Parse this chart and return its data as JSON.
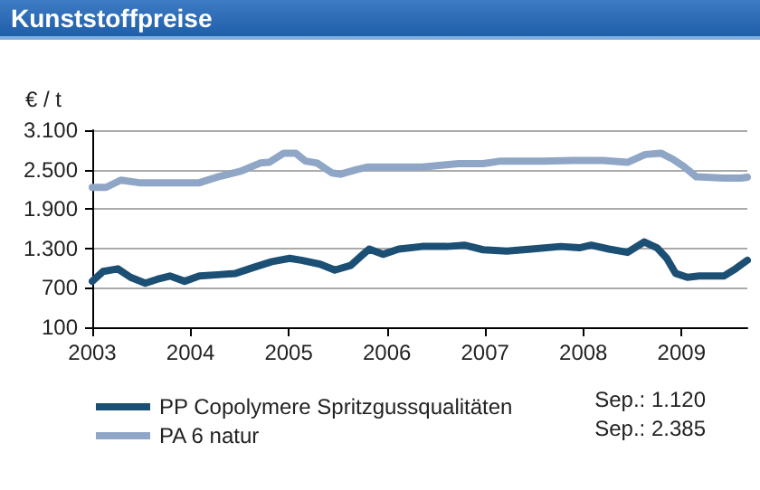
{
  "chart_data": {
    "type": "line",
    "title": "Kunststoffpreise",
    "ylabel": "€ / t",
    "xlim": [
      2003,
      2009.67
    ],
    "xticks": [
      2003,
      2004,
      2005,
      2006,
      2007,
      2008,
      2009
    ],
    "ylim": [
      100,
      3100
    ],
    "yticks": [
      {
        "value": 100,
        "label": "100"
      },
      {
        "value": 700,
        "label": "700"
      },
      {
        "value": 1300,
        "label": "1.300"
      },
      {
        "value": 1900,
        "label": "1.900"
      },
      {
        "value": 2500,
        "label": "2.500"
      },
      {
        "value": 3100,
        "label": "3.100"
      }
    ],
    "grid": "y",
    "legend": "bottom",
    "marker": "none",
    "line_style": "solid",
    "annotations": [
      "Sep.: 1.120",
      "Sep.: 2.385"
    ],
    "series": [
      {
        "name": "PP Copolymere Spritzgussqualitäten",
        "color": "#1c4f74",
        "x": [
          2003.0,
          2003.11,
          2003.26,
          2003.39,
          2003.54,
          2003.66,
          2003.79,
          2003.94,
          2004.09,
          2004.28,
          2004.46,
          2004.64,
          2004.83,
          2005.01,
          2005.13,
          2005.32,
          2005.47,
          2005.63,
          2005.75,
          2005.82,
          2005.96,
          2006.12,
          2006.36,
          2006.61,
          2006.79,
          2006.98,
          2007.22,
          2007.47,
          2007.77,
          2007.96,
          2008.08,
          2008.26,
          2008.45,
          2008.62,
          2008.75,
          2008.85,
          2008.94,
          2009.06,
          2009.18,
          2009.43,
          2009.55,
          2009.67
        ],
        "values": [
          800,
          950,
          990,
          860,
          770,
          830,
          880,
          800,
          880,
          900,
          920,
          1010,
          1100,
          1150,
          1120,
          1060,
          970,
          1040,
          1200,
          1290,
          1210,
          1290,
          1330,
          1330,
          1350,
          1280,
          1260,
          1290,
          1330,
          1310,
          1350,
          1290,
          1240,
          1400,
          1310,
          1150,
          920,
          860,
          880,
          880,
          990,
          1120
        ]
      },
      {
        "name": "PA 6 natur",
        "color": "#8fa6c6",
        "x": [
          2003.0,
          2003.14,
          2003.29,
          2003.48,
          2003.66,
          2003.94,
          2004.09,
          2004.28,
          2004.52,
          2004.71,
          2004.8,
          2004.95,
          2005.07,
          2005.17,
          2005.29,
          2005.44,
          2005.53,
          2005.69,
          2005.81,
          2006.06,
          2006.36,
          2006.73,
          2006.98,
          2007.16,
          2007.59,
          2007.9,
          2008.2,
          2008.45,
          2008.63,
          2008.79,
          2008.91,
          2009.03,
          2009.15,
          2009.43,
          2009.61,
          2009.67
        ],
        "values": [
          2230,
          2230,
          2340,
          2300,
          2300,
          2300,
          2300,
          2390,
          2480,
          2600,
          2610,
          2750,
          2750,
          2630,
          2600,
          2450,
          2430,
          2500,
          2540,
          2540,
          2540,
          2590,
          2590,
          2630,
          2630,
          2640,
          2640,
          2610,
          2730,
          2750,
          2660,
          2540,
          2390,
          2370,
          2370,
          2385
        ]
      }
    ]
  }
}
